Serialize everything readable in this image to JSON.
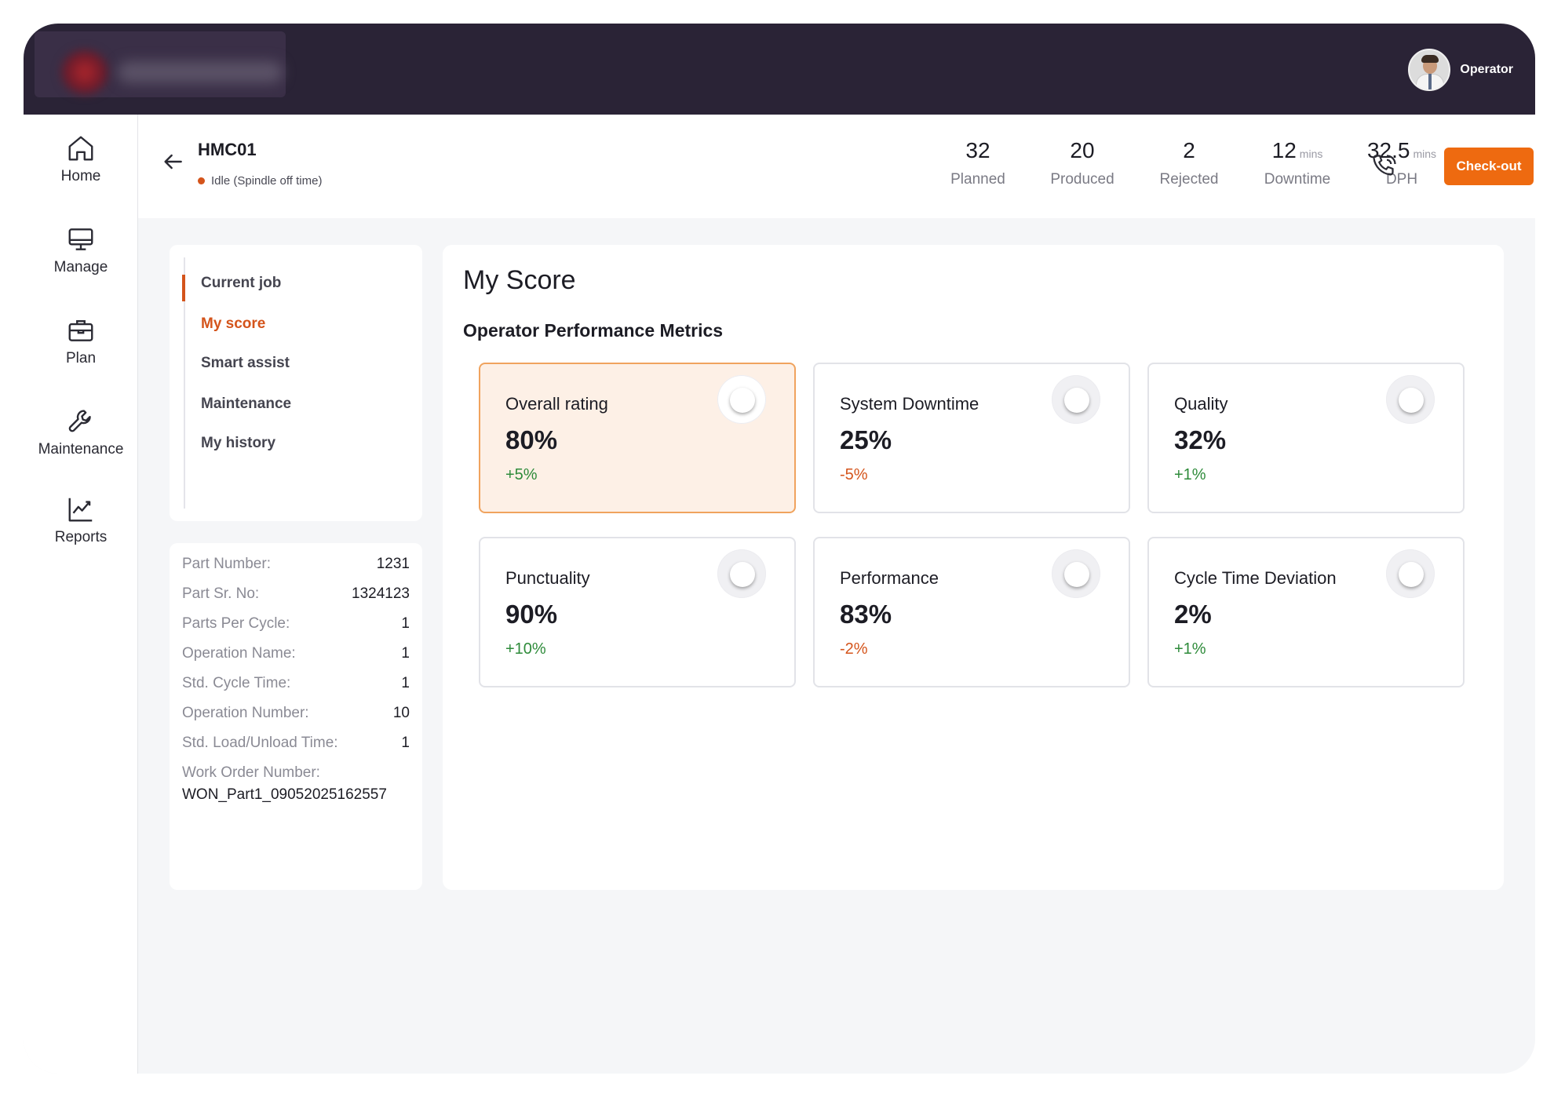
{
  "topbar": {
    "operator_label": "Operator"
  },
  "sidebar": {
    "items": [
      {
        "label": "Home",
        "icon": "home-icon"
      },
      {
        "label": "Manage",
        "icon": "monitor-icon"
      },
      {
        "label": "Plan",
        "icon": "briefcase-icon"
      },
      {
        "label": "Maintenance",
        "icon": "wrench-icon"
      },
      {
        "label": "Reports",
        "icon": "chart-line-icon"
      }
    ]
  },
  "header": {
    "machine_name": "HMC01",
    "status": "Idle (Spindle off time)",
    "status_color": "#d4541b",
    "stats": [
      {
        "value": "32",
        "unit": "",
        "label": "Planned"
      },
      {
        "value": "20",
        "unit": "",
        "label": "Produced"
      },
      {
        "value": "2",
        "unit": "",
        "label": "Rejected"
      },
      {
        "value": "12",
        "unit": "mins",
        "label": "Downtime"
      },
      {
        "value": "32.5",
        "unit": "mins",
        "label": "DPH"
      }
    ],
    "checkout_label": "Check-out",
    "accent_color": "#ee6a10"
  },
  "menu": {
    "items": [
      {
        "label": "Current job"
      },
      {
        "label": "My score"
      },
      {
        "label": "Smart assist"
      },
      {
        "label": "Maintenance"
      },
      {
        "label": "My history"
      }
    ],
    "active": "My score"
  },
  "part_info": {
    "rows": [
      {
        "label": "Part Number:",
        "value": "1231"
      },
      {
        "label": "Part Sr. No:",
        "value": "1324123"
      },
      {
        "label": "Parts Per Cycle:",
        "value": "1"
      },
      {
        "label": "Operation Name:",
        "value": "1"
      },
      {
        "label": "Std. Cycle Time:",
        "value": "1"
      },
      {
        "label": "Operation Number:",
        "value": "10"
      },
      {
        "label": "Std. Load/Unload Time:",
        "value": "1"
      }
    ],
    "work_order_label": "Work Order Number:",
    "work_order_value": "WON_Part1_09052025162557"
  },
  "score": {
    "title": "My Score",
    "subtitle": "Operator Performance Metrics",
    "metrics": [
      {
        "name": "Overall rating",
        "value": "80%",
        "delta": "+5%",
        "trend": "up"
      },
      {
        "name": "System Downtime",
        "value": "25%",
        "delta": "-5%",
        "trend": "down"
      },
      {
        "name": "Quality",
        "value": "32%",
        "delta": "+1%",
        "trend": "up"
      },
      {
        "name": "Punctuality",
        "value": "90%",
        "delta": "+10%",
        "trend": "up"
      },
      {
        "name": "Performance",
        "value": "83%",
        "delta": "-2%",
        "trend": "down"
      },
      {
        "name": "Cycle Time Deviation",
        "value": "2%",
        "delta": "+1%",
        "trend": "up"
      }
    ]
  }
}
